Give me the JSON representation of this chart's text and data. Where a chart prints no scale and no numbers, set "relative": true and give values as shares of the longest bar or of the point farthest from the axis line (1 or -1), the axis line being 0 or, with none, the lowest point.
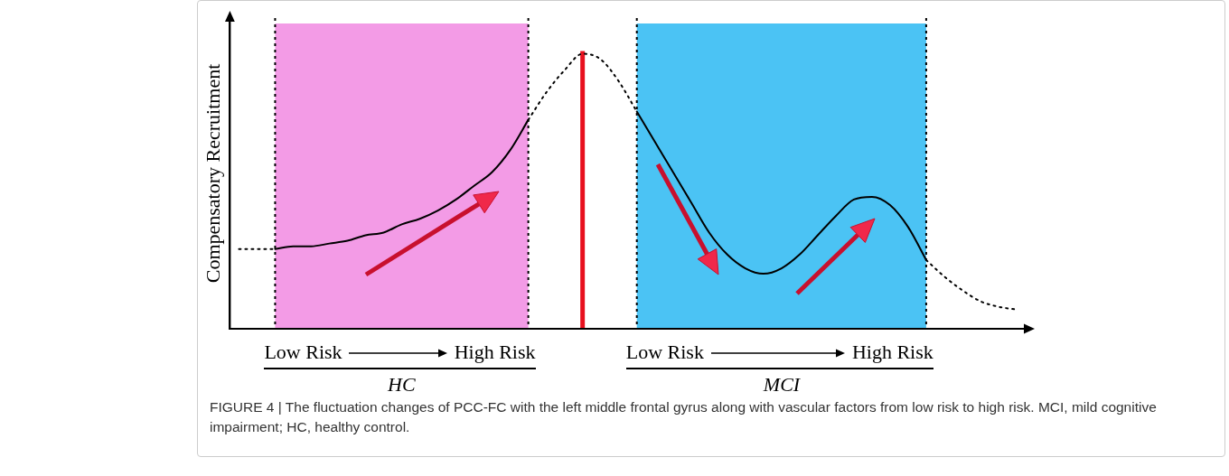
{
  "chart_data": {
    "type": "line",
    "relative": true,
    "ylabel": "Compensatory Recruitment",
    "tick_labels": false,
    "grid": false,
    "legend": false,
    "marker": "none",
    "categories": [
      null,
      null,
      null,
      null,
      null,
      null,
      null,
      null,
      null,
      null,
      null,
      null,
      null,
      null,
      null,
      null,
      null,
      null,
      null,
      null,
      null,
      null,
      null,
      null,
      null,
      null,
      null,
      null,
      null,
      null,
      null,
      null,
      null,
      null,
      null,
      null,
      null,
      null,
      null,
      null,
      null,
      null,
      null,
      null
    ],
    "series": [
      {
        "color": "#000000",
        "line_style": "dotted",
        "values": [
          0.29,
          0.29,
          0.29,
          null,
          null,
          null,
          null,
          null,
          null,
          null,
          null,
          null,
          null,
          null,
          null,
          null,
          null,
          null,
          null,
          null,
          null,
          null,
          null,
          null,
          null,
          null,
          null,
          null,
          null,
          null,
          null,
          null,
          null,
          null,
          null,
          null,
          null,
          null,
          null,
          null,
          null,
          null,
          null,
          null
        ]
      },
      {
        "color": "#000000",
        "line_style": "solid",
        "values": [
          null,
          null,
          0.29,
          0.3,
          0.3,
          0.31,
          0.32,
          0.34,
          0.35,
          0.38,
          0.4,
          0.43,
          0.47,
          0.52,
          0.57,
          0.65,
          0.76,
          null,
          null,
          null,
          null,
          null,
          null,
          null,
          null,
          null,
          null,
          null,
          null,
          null,
          null,
          null,
          null,
          null,
          null,
          null,
          null,
          null,
          null,
          null,
          null,
          null,
          null,
          null
        ]
      },
      {
        "color": "#000000",
        "line_style": "dotted",
        "values": [
          null,
          null,
          null,
          null,
          null,
          null,
          null,
          null,
          null,
          null,
          null,
          null,
          null,
          null,
          null,
          null,
          0.76,
          0.86,
          0.94,
          1.0,
          0.98,
          0.9,
          0.79,
          null,
          null,
          null,
          null,
          null,
          null,
          null,
          null,
          null,
          null,
          null,
          null,
          null,
          null,
          null,
          null,
          null,
          null,
          null,
          null,
          null
        ]
      },
      {
        "color": "#000000",
        "line_style": "solid",
        "values": [
          null,
          null,
          null,
          null,
          null,
          null,
          null,
          null,
          null,
          null,
          null,
          null,
          null,
          null,
          null,
          null,
          null,
          null,
          null,
          null,
          null,
          null,
          0.79,
          0.68,
          0.57,
          0.46,
          0.35,
          0.27,
          0.22,
          0.2,
          0.22,
          0.27,
          0.34,
          0.41,
          0.47,
          0.48,
          0.45,
          0.37,
          0.25,
          null,
          null,
          null,
          null,
          null
        ]
      },
      {
        "color": "#000000",
        "line_style": "dotted",
        "values": [
          null,
          null,
          null,
          null,
          null,
          null,
          null,
          null,
          null,
          null,
          null,
          null,
          null,
          null,
          null,
          null,
          null,
          null,
          null,
          null,
          null,
          null,
          null,
          null,
          null,
          null,
          null,
          null,
          null,
          null,
          null,
          null,
          null,
          null,
          null,
          null,
          null,
          null,
          0.25,
          0.19,
          0.14,
          0.1,
          0.08,
          0.07
        ]
      }
    ],
    "annotations": [
      "Low Risk",
      "High Risk",
      "HC",
      "Low Risk",
      "High Risk",
      "MCI",
      "FIGURE 4 | The fluctuation changes of PCC-FC with the left middle frontal gyrus along with vascular factors from low risk to high risk. MCI, mild cognitive impairment; HC, healthy control."
    ]
  }
}
